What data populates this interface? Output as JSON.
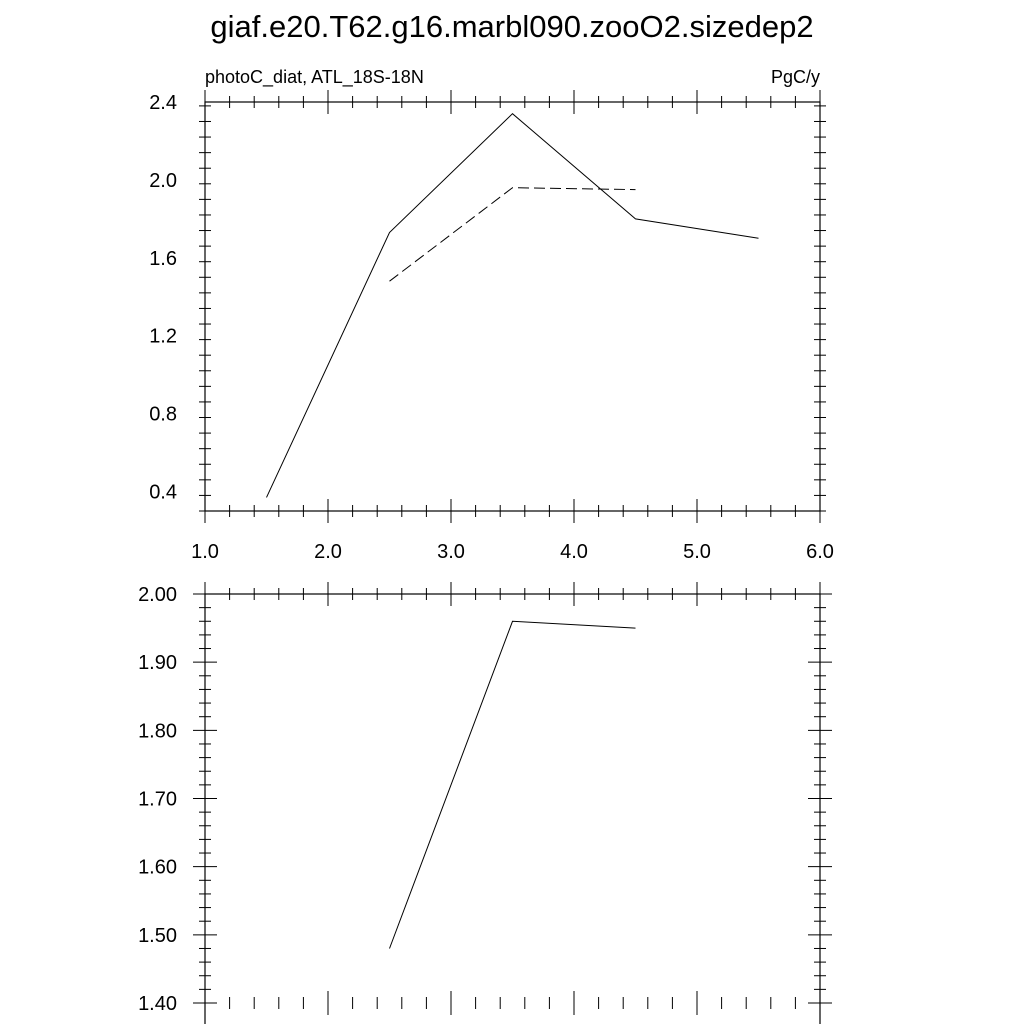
{
  "title": "giaf.e20.T62.g16.marbl090.zooO2.sizedep2",
  "chart_data": [
    {
      "type": "line",
      "title_left": "photoC_diat, ATL_18S-18N",
      "title_right": "PgC/y",
      "xlim": [
        1.0,
        6.0
      ],
      "ylim": [
        0.3,
        2.4
      ],
      "x_ticks": [
        "1.0",
        "2.0",
        "3.0",
        "4.0",
        "5.0",
        "6.0"
      ],
      "y_ticks": [
        "0.4",
        "0.8",
        "1.2",
        "1.6",
        "2.0",
        "2.4"
      ],
      "series": [
        {
          "style": "solid",
          "x": [
            1.5,
            2.5,
            3.5,
            4.5,
            5.5
          ],
          "y": [
            0.37,
            1.73,
            2.34,
            1.8,
            1.7
          ]
        },
        {
          "style": "dashed",
          "x": [
            2.5,
            3.5,
            4.5
          ],
          "y": [
            1.48,
            1.96,
            1.95
          ]
        }
      ]
    },
    {
      "type": "line",
      "xlim": [
        1.0,
        6.0
      ],
      "ylim": [
        1.4,
        2.0
      ],
      "y_ticks": [
        "1.40",
        "1.50",
        "1.60",
        "1.70",
        "1.80",
        "1.90",
        "2.00"
      ],
      "series": [
        {
          "style": "solid",
          "x": [
            2.5,
            3.5,
            4.5
          ],
          "y": [
            1.48,
            1.96,
            1.95
          ]
        }
      ]
    }
  ]
}
